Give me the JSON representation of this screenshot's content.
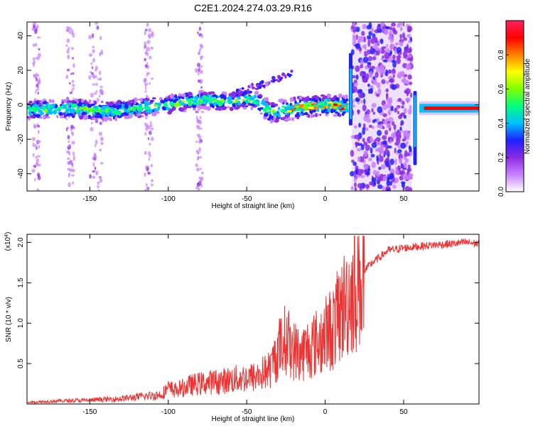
{
  "figure": {
    "title": "C2E1.2024.274.03.29.R16"
  },
  "chart_data": [
    {
      "type": "heatmap",
      "xlabel": "Height of straight line (km)",
      "ylabel": "Frequency (Hz)",
      "xlim": [
        -190,
        98
      ],
      "ylim": [
        -50,
        48
      ],
      "x_ticks": [
        -150,
        -100,
        -50,
        0,
        50
      ],
      "y_ticks": [
        -40,
        -20,
        0,
        20,
        40
      ],
      "colorbar": {
        "label": "Normalized spectral amplitude",
        "range": [
          0,
          1
        ],
        "ticks": [
          0.0,
          0.2,
          0.4,
          0.6,
          0.8
        ],
        "colors": [
          "#ffffff",
          "#c880ff",
          "#8a2be2",
          "#2020ff",
          "#00c0ff",
          "#00ff80",
          "#80ff00",
          "#ffff00",
          "#ff8000",
          "#ff0000",
          "#ff2060"
        ]
      },
      "ridge": [
        {
          "x": -190,
          "y": -3
        },
        {
          "x": -160,
          "y": -2
        },
        {
          "x": -140,
          "y": -4
        },
        {
          "x": -120,
          "y": -2
        },
        {
          "x": -100,
          "y": 0
        },
        {
          "x": -80,
          "y": 3
        },
        {
          "x": -60,
          "y": 2
        },
        {
          "x": -45,
          "y": 3
        },
        {
          "x": -35,
          "y": -4
        },
        {
          "x": -25,
          "y": -3
        },
        {
          "x": -10,
          "y": -1
        },
        {
          "x": 0,
          "y": 0
        },
        {
          "x": 12,
          "y": -1
        },
        {
          "x": 60,
          "y": -2
        },
        {
          "x": 98,
          "y": -3
        }
      ],
      "noisy_band_km": [
        17,
        55
      ],
      "grid": false
    },
    {
      "type": "line",
      "xlabel": "Height of straight line (km)",
      "ylabel": "SNR (10 * v/v)",
      "y_multiplier": "(x10",
      "y_multiplier_exp": "4",
      "y_multiplier_close": ")",
      "xlim": [
        -190,
        98
      ],
      "ylim": [
        0,
        2.1
      ],
      "x_ticks": [
        -150,
        -100,
        -50,
        0,
        50
      ],
      "y_ticks": [
        0.5,
        1.0,
        1.5,
        2.0
      ],
      "y_tick_labels": [
        "0.5",
        "1.0",
        "1.5",
        "2.0"
      ],
      "color": "#ee3333",
      "series": [
        {
          "x": [
            -190,
            -170,
            -150,
            -130,
            -115,
            -105,
            -100,
            -95,
            -85,
            -75,
            -65,
            -55,
            -45,
            -35,
            -30,
            -25,
            -20,
            -15,
            -10,
            -5,
            0,
            5,
            10,
            15,
            20,
            25,
            30,
            35,
            40,
            50,
            60,
            70,
            80,
            90,
            98
          ],
          "y": [
            0.02,
            0.04,
            0.05,
            0.07,
            0.1,
            0.12,
            0.2,
            0.18,
            0.25,
            0.28,
            0.3,
            0.33,
            0.35,
            0.45,
            0.7,
            0.85,
            0.7,
            0.65,
            0.75,
            0.8,
            0.9,
            1.0,
            1.2,
            1.4,
            1.55,
            1.65,
            1.75,
            1.82,
            1.9,
            1.93,
            1.95,
            1.97,
            1.98,
            2.0,
            1.98
          ]
        }
      ],
      "grid": false
    }
  ]
}
